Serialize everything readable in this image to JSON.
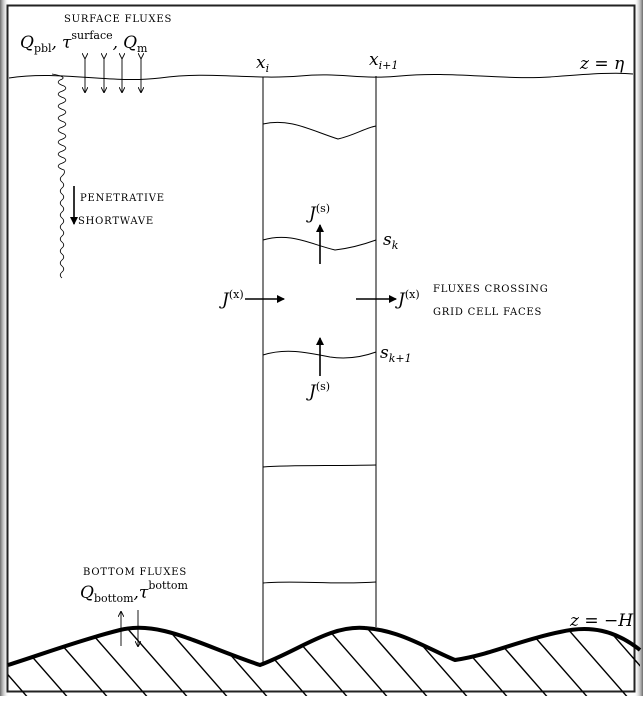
{
  "surface": {
    "title": "SURFACE FLUXES",
    "q_pbl": "Q",
    "q_pbl_sub": "pbl",
    "tau": "τ",
    "tau_sup": "surface",
    "q_m": "Q",
    "q_m_sub": "m",
    "sep": ",",
    "eta_label": "z = η"
  },
  "columns": {
    "xi": "x",
    "xi_sub": "i",
    "xi1": "x",
    "xi1_sub": "i+1"
  },
  "penetrative": {
    "line1": "PENETRATIVE",
    "line2": "SHORTWAVE"
  },
  "levels": {
    "sk": "s",
    "sk_sub": "k",
    "sk1": "s",
    "sk1_sub": "k+1"
  },
  "fluxes": {
    "j": "J",
    "js_sup": "(s)",
    "jx_sup": "(x)",
    "cross_line1": "FLUXES CROSSING",
    "cross_line2": "GRID CELL FACES"
  },
  "bottom": {
    "title": "BOTTOM FLUXES",
    "q": "Q",
    "q_sub": "bottom",
    "tau": "τ",
    "tau_sup": "bottom",
    "sep": ",",
    "h_label": "z = −H"
  }
}
